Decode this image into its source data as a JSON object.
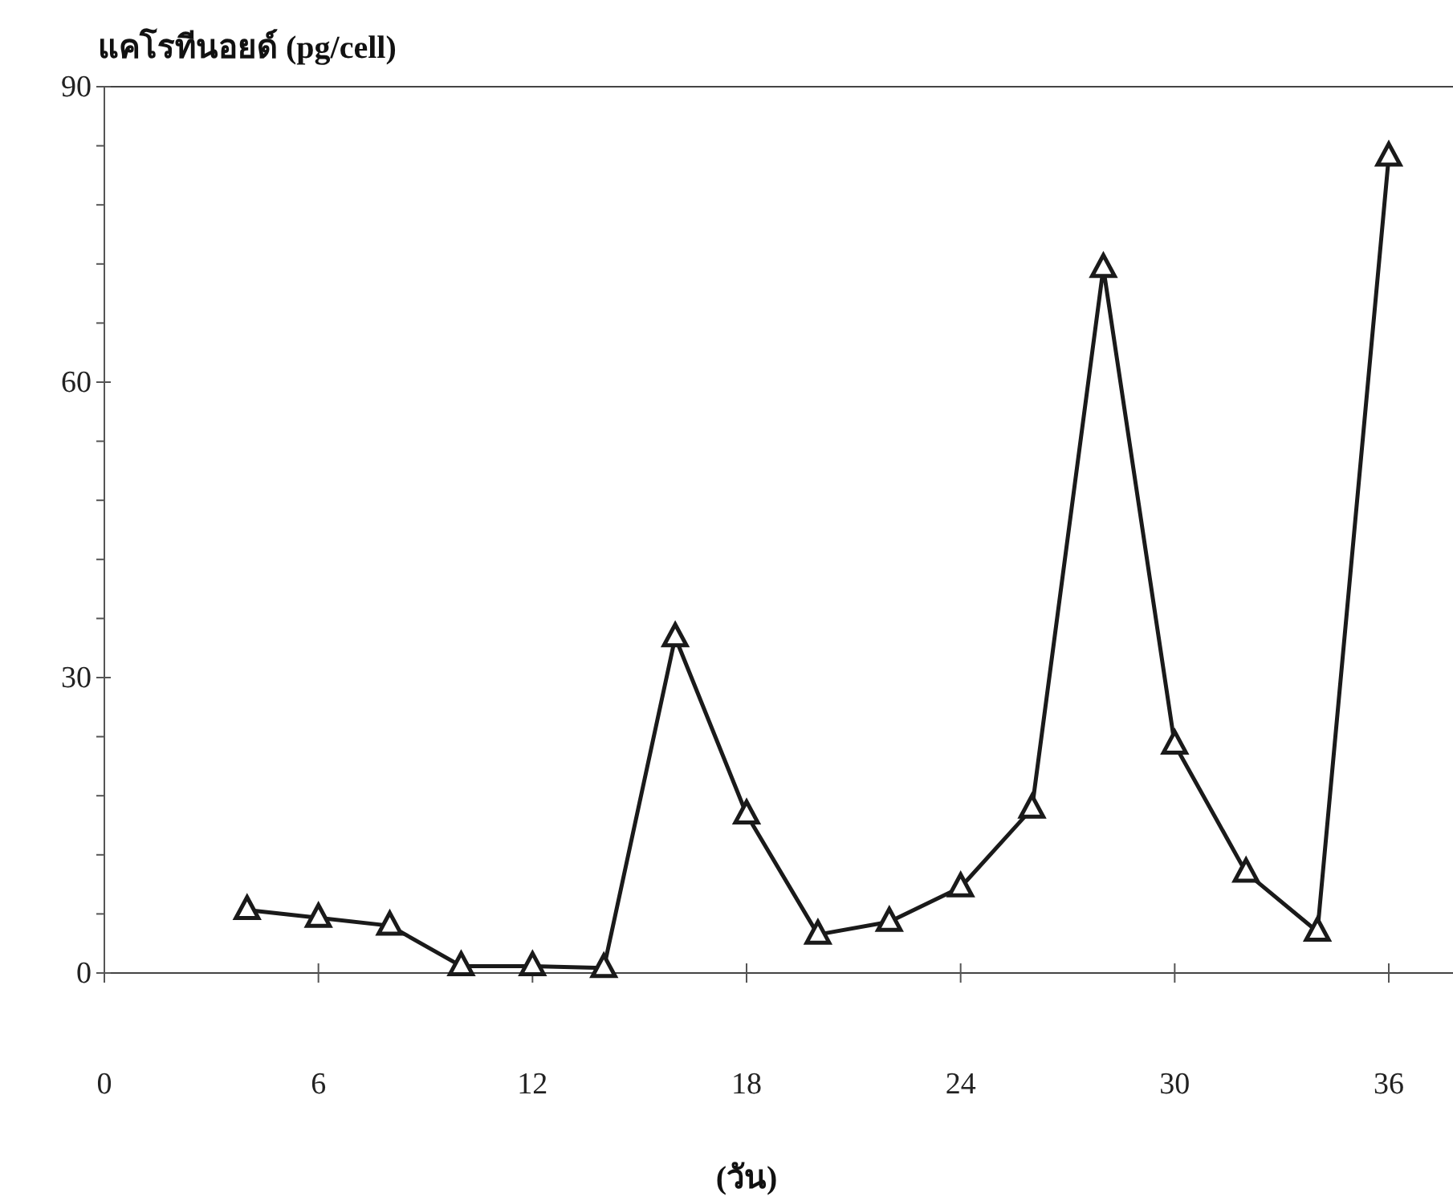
{
  "chart_data": {
    "type": "line",
    "ylabel": "แคโรทีนอยด์ (pg/cell)",
    "xlabel": "(วัน)",
    "x": [
      4,
      6,
      8,
      10,
      12,
      14,
      16,
      18,
      20,
      22,
      24,
      26,
      28,
      30,
      32,
      34,
      36
    ],
    "values": [
      6.4,
      5.6,
      4.8,
      0.7,
      0.7,
      0.5,
      34.1,
      16.1,
      3.9,
      5.2,
      8.7,
      16.7,
      71.6,
      23.2,
      10.2,
      4.2,
      82.9
    ],
    "color": "#1a1a1a",
    "marker": "triangle",
    "line_style": "solid",
    "grid": false,
    "xlim": [
      0,
      36
    ],
    "ylim": [
      0,
      90
    ],
    "xticks": [
      0,
      6,
      12,
      18,
      24,
      30,
      36
    ],
    "yticks": [
      0,
      {
        "value": 6,
        "label": null
      },
      {
        "value": 12,
        "label": null
      },
      {
        "value": 18,
        "label": null
      },
      {
        "value": 24,
        "label": null
      },
      30,
      {
        "value": 36,
        "label": null
      },
      {
        "value": 42,
        "label": null
      },
      {
        "value": 48,
        "label": null
      },
      {
        "value": 54,
        "label": null
      },
      60,
      {
        "value": 66,
        "label": null
      },
      {
        "value": 72,
        "label": null
      },
      {
        "value": 78,
        "label": null
      },
      {
        "value": 84,
        "label": null
      },
      90
    ]
  }
}
